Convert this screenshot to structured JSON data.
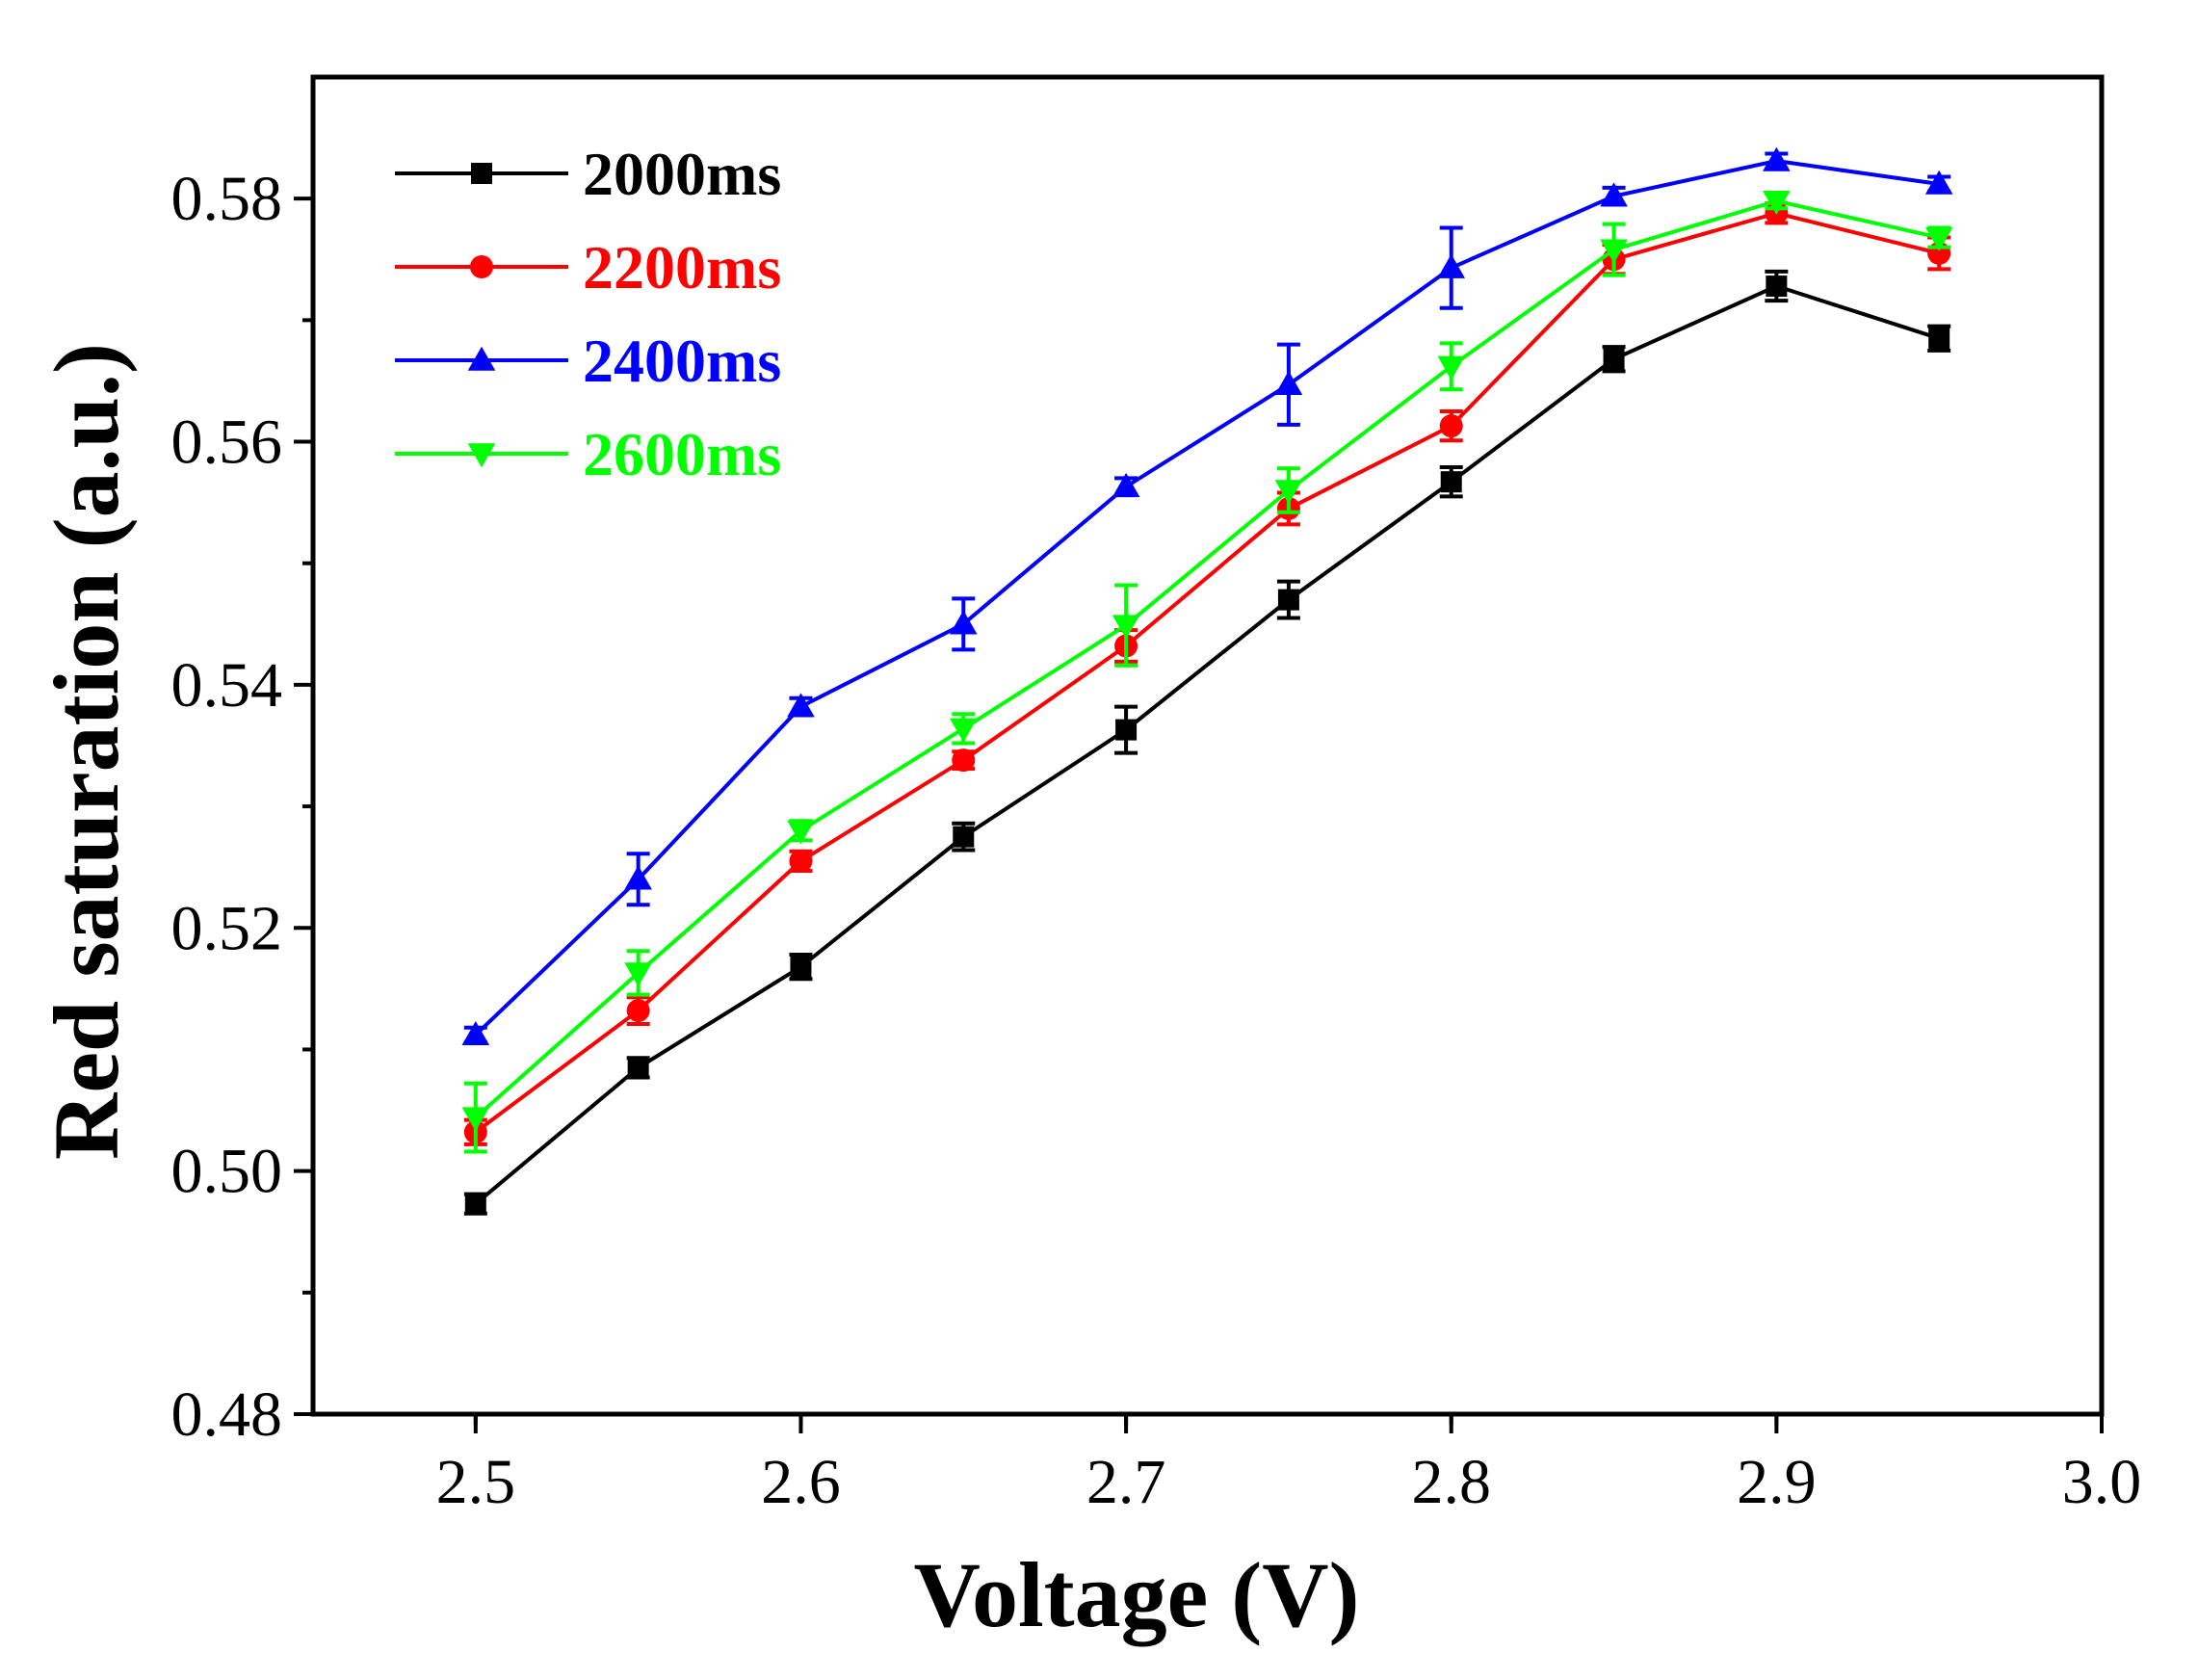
{
  "chart_data": {
    "type": "line",
    "title": "",
    "xlabel": "Voltage (V)",
    "ylabel": "Red saturation (a.u.)",
    "xlim": [
      2.45,
      3.0
    ],
    "ylim": [
      0.48,
      0.59
    ],
    "x_ticks": [
      "2.5",
      "2.6",
      "2.7",
      "2.8",
      "2.9",
      "3.0"
    ],
    "y_ticks": [
      "0.48",
      "0.50",
      "0.52",
      "0.54",
      "0.56",
      "0.58"
    ],
    "x": [
      2.5,
      2.55,
      2.6,
      2.65,
      2.7,
      2.75,
      2.8,
      2.85,
      2.9,
      2.95
    ],
    "legend_position": "top-left",
    "series": [
      {
        "name": "2000ms",
        "color": "#000000",
        "marker": "square",
        "values": [
          0.4973,
          0.5085,
          0.5168,
          0.5275,
          0.5363,
          0.547,
          0.5567,
          0.5668,
          0.5728,
          0.5685
        ],
        "errors": [
          0.0008,
          0.0008,
          0.001,
          0.0011,
          0.0019,
          0.0015,
          0.0012,
          0.001,
          0.0012,
          0.001
        ]
      },
      {
        "name": "2200ms",
        "color": "#ff0000",
        "marker": "circle",
        "values": [
          0.5032,
          0.5132,
          0.5255,
          0.5338,
          0.5432,
          0.5545,
          0.5613,
          0.575,
          0.5788,
          0.5755
        ],
        "errors": [
          0.001,
          0.0011,
          0.0008,
          0.0007,
          0.0013,
          0.0013,
          0.0012,
          0.0012,
          0.0008,
          0.0013
        ]
      },
      {
        "name": "2400ms",
        "color": "#0000ff",
        "marker": "triangle-up",
        "values": [
          0.5112,
          0.524,
          0.5382,
          0.545,
          0.5563,
          0.5647,
          0.5743,
          0.5802,
          0.5831,
          0.5812
        ],
        "errors": [
          0.0006,
          0.0021,
          0.0007,
          0.0021,
          0.0007,
          0.0033,
          0.0033,
          0.0007,
          0.0006,
          0.0006
        ]
      },
      {
        "name": "2600ms",
        "color": "#00ff00",
        "marker": "triangle-down",
        "values": [
          0.5044,
          0.5163,
          0.528,
          0.5364,
          0.5449,
          0.556,
          0.5662,
          0.5758,
          0.5798,
          0.5768
        ],
        "errors": [
          0.0028,
          0.0018,
          0.0008,
          0.0012,
          0.0033,
          0.0018,
          0.0019,
          0.0021,
          0.0006,
          0.0008
        ]
      }
    ]
  }
}
